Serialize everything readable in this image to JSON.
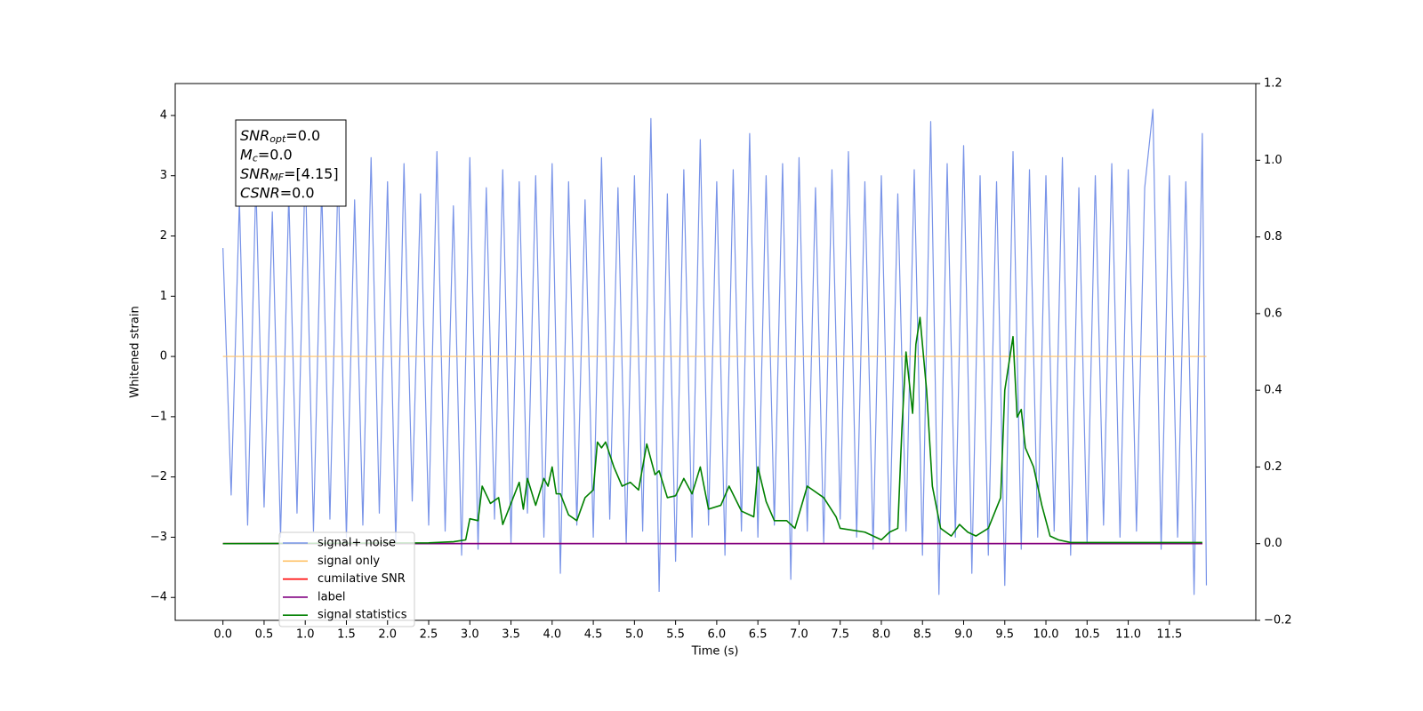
{
  "chart_data": {
    "type": "line",
    "xlabel": "Time (s)",
    "ylabel": "Whitened strain",
    "xlim": [
      -0.58,
      12.55
    ],
    "ylim": [
      -4.38,
      4.53
    ],
    "y2lim": [
      -0.2,
      1.2
    ],
    "xticks": [
      {
        "value": 0,
        "label": "0.0"
      },
      0.5,
      {
        "value": 1,
        "label": "1.0"
      },
      1.5,
      {
        "value": 2,
        "label": "2.0"
      },
      2.5,
      {
        "value": 3,
        "label": "3.0"
      },
      3.5,
      {
        "value": 4,
        "label": "4.0"
      },
      4.5,
      {
        "value": 5,
        "label": "5.0"
      },
      5.5,
      {
        "value": 6,
        "label": "6.0"
      },
      6.5,
      {
        "value": 7,
        "label": "7.0"
      },
      7.5,
      {
        "value": 8,
        "label": "8.0"
      },
      8.5,
      {
        "value": 9,
        "label": "9.0"
      },
      9.5,
      {
        "value": 10,
        "label": "10.0"
      },
      10.5,
      {
        "value": 11,
        "label": "11.0"
      },
      11.5
    ],
    "yticks": [
      {
        "value": -4,
        "label": "−4"
      },
      {
        "value": -3,
        "label": "−3"
      },
      {
        "value": -2,
        "label": "−2"
      },
      {
        "value": -1,
        "label": "−1"
      },
      0,
      1,
      2,
      3,
      4
    ],
    "y2ticks": [
      {
        "value": -0.2,
        "label": "−0.2"
      },
      {
        "value": 0,
        "label": "0.0"
      },
      0.2,
      0.4,
      0.6,
      0.8,
      {
        "value": 1,
        "label": "1.0"
      },
      1.2
    ],
    "annotations": [
      {
        "main": "SNR",
        "sub": "opt",
        "rest": "=0.0"
      },
      {
        "main": "M",
        "sub": "c",
        "rest": "=0.0"
      },
      {
        "main": "SNR",
        "sub": "MF",
        "rest": "=[4.15]"
      },
      {
        "main": "CSNR",
        "sub": "",
        "rest": "=0.0"
      }
    ],
    "series": [
      {
        "name": "signal+ noise",
        "color": "#7893e8",
        "axis": "y",
        "x": [
          0.0,
          0.1,
          0.2,
          0.3,
          0.4,
          0.5,
          0.6,
          0.7,
          0.8,
          0.9,
          1.0,
          1.1,
          1.2,
          1.3,
          1.4,
          1.5,
          1.6,
          1.7,
          1.8,
          1.9,
          2.0,
          2.1,
          2.2,
          2.3,
          2.4,
          2.5,
          2.6,
          2.7,
          2.8,
          2.9,
          3.0,
          3.1,
          3.2,
          3.3,
          3.4,
          3.5,
          3.6,
          3.7,
          3.8,
          3.9,
          4.0,
          4.1,
          4.2,
          4.3,
          4.4,
          4.5,
          4.6,
          4.7,
          4.8,
          4.9,
          5.0,
          5.1,
          5.2,
          5.3,
          5.4,
          5.5,
          5.6,
          5.7,
          5.8,
          5.9,
          6.0,
          6.1,
          6.2,
          6.3,
          6.4,
          6.5,
          6.6,
          6.7,
          6.8,
          6.9,
          7.0,
          7.1,
          7.2,
          7.3,
          7.4,
          7.5,
          7.6,
          7.7,
          7.8,
          7.9,
          8.0,
          8.1,
          8.2,
          8.3,
          8.4,
          8.5,
          8.6,
          8.7,
          8.8,
          8.9,
          9.0,
          9.1,
          9.2,
          9.3,
          9.4,
          9.5,
          9.6,
          9.7,
          9.8,
          9.9,
          10.0,
          10.1,
          10.2,
          10.3,
          10.4,
          10.5,
          10.6,
          10.7,
          10.8,
          10.9,
          11.0,
          11.1,
          11.2,
          11.3,
          11.4,
          11.5,
          11.6,
          11.7,
          11.8,
          11.9,
          11.95
        ],
        "values": [
          1.8,
          -2.3,
          2.6,
          -2.8,
          2.9,
          -2.5,
          2.4,
          -3.0,
          2.7,
          -2.6,
          3.2,
          -2.9,
          2.8,
          -2.7,
          3.1,
          -3.0,
          2.6,
          -2.8,
          3.3,
          -2.6,
          2.9,
          -3.1,
          3.2,
          -2.4,
          2.7,
          -2.8,
          3.4,
          -2.9,
          2.5,
          -3.3,
          3.3,
          -3.2,
          2.8,
          -2.7,
          3.1,
          -3.1,
          2.9,
          -2.6,
          3.0,
          -3.0,
          3.2,
          -3.6,
          2.9,
          -2.8,
          2.6,
          -3.0,
          3.3,
          -2.7,
          2.8,
          -3.1,
          3.0,
          -2.9,
          3.95,
          -3.9,
          2.7,
          -3.4,
          3.1,
          -3.0,
          3.6,
          -2.8,
          2.9,
          -3.3,
          3.1,
          -2.9,
          3.7,
          -3.0,
          3.0,
          -2.8,
          3.2,
          -3.7,
          3.3,
          -2.9,
          2.8,
          -3.1,
          3.1,
          -2.7,
          3.4,
          -3.0,
          2.9,
          -3.2,
          3.0,
          -3.1,
          2.7,
          -2.9,
          3.1,
          -3.3,
          3.9,
          -3.95,
          3.2,
          -3.0,
          3.5,
          -3.6,
          3.0,
          -3.3,
          2.9,
          -3.8,
          3.4,
          -3.2,
          3.1,
          -3.0,
          3.0,
          -2.9,
          3.3,
          -3.3,
          2.8,
          -3.1,
          3.0,
          -2.8,
          3.2,
          -3.0,
          3.1,
          -2.9,
          2.8,
          4.1,
          -3.2,
          3.0,
          -3.0,
          2.9,
          -3.95,
          3.7,
          -3.8
        ]
      },
      {
        "name": "signal only",
        "color": "#ffc266",
        "axis": "y",
        "x": [
          0,
          11.95
        ],
        "values": [
          0,
          0
        ]
      },
      {
        "name": "cumilative SNR",
        "color": "#ff0000",
        "axis": "y2",
        "x": [
          0,
          11.9
        ],
        "values": [
          0,
          0
        ]
      },
      {
        "name": "label",
        "color": "#800080",
        "axis": "y2",
        "x": [
          0,
          11.9
        ],
        "values": [
          0,
          0
        ]
      },
      {
        "name": "signal statistics",
        "color": "#008000",
        "axis": "y2",
        "x": [
          0,
          2.5,
          2.8,
          2.95,
          3.0,
          3.1,
          3.15,
          3.25,
          3.35,
          3.4,
          3.6,
          3.65,
          3.7,
          3.8,
          3.9,
          3.95,
          4.0,
          4.05,
          4.1,
          4.2,
          4.3,
          4.4,
          4.5,
          4.55,
          4.6,
          4.65,
          4.75,
          4.85,
          4.95,
          5.05,
          5.15,
          5.25,
          5.3,
          5.4,
          5.5,
          5.6,
          5.7,
          5.8,
          5.9,
          6.05,
          6.15,
          6.3,
          6.45,
          6.5,
          6.6,
          6.7,
          6.85,
          6.95,
          7.1,
          7.3,
          7.45,
          7.5,
          7.8,
          8.0,
          8.1,
          8.2,
          8.25,
          8.3,
          8.38,
          8.42,
          8.47,
          8.55,
          8.62,
          8.72,
          8.85,
          8.95,
          9.05,
          9.15,
          9.3,
          9.45,
          9.5,
          9.6,
          9.65,
          9.7,
          9.75,
          9.85,
          9.95,
          10.05,
          10.15,
          10.3,
          11.9
        ],
        "values": [
          0,
          0.002,
          0.005,
          0.01,
          0.065,
          0.06,
          0.15,
          0.105,
          0.12,
          0.05,
          0.16,
          0.09,
          0.17,
          0.1,
          0.17,
          0.15,
          0.2,
          0.13,
          0.13,
          0.075,
          0.06,
          0.12,
          0.14,
          0.265,
          0.25,
          0.265,
          0.2,
          0.15,
          0.16,
          0.14,
          0.26,
          0.18,
          0.19,
          0.12,
          0.125,
          0.17,
          0.13,
          0.2,
          0.09,
          0.1,
          0.15,
          0.085,
          0.07,
          0.2,
          0.11,
          0.06,
          0.06,
          0.04,
          0.15,
          0.12,
          0.07,
          0.04,
          0.03,
          0.01,
          0.03,
          0.04,
          0.3,
          0.5,
          0.34,
          0.52,
          0.59,
          0.4,
          0.15,
          0.04,
          0.02,
          0.05,
          0.03,
          0.02,
          0.04,
          0.12,
          0.4,
          0.54,
          0.33,
          0.35,
          0.25,
          0.2,
          0.1,
          0.02,
          0.01,
          0.003,
          0.003
        ]
      }
    ]
  }
}
